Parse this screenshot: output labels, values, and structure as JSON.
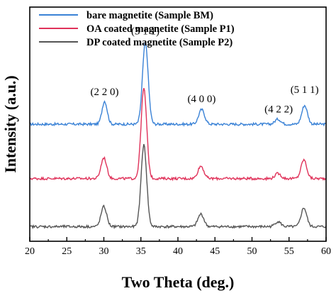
{
  "chart_data": {
    "type": "line",
    "xlabel": "Two Theta (deg.)",
    "ylabel": "Intensity (a.u.)",
    "xlim": [
      20,
      60
    ],
    "x_ticks": [
      20,
      25,
      30,
      35,
      40,
      45,
      50,
      55,
      60
    ],
    "y_ticks_shown": false,
    "grid": false,
    "legend_position": "top-left",
    "series": [
      {
        "name": "bare magnetite (Sample BM)",
        "color": "#3a82d6",
        "baseline": 2.8,
        "peaks": [
          {
            "x": 30.1,
            "height": 0.55,
            "width": 0.35
          },
          {
            "x": 35.6,
            "height": 1.95,
            "width": 0.38
          },
          {
            "x": 43.2,
            "height": 0.35,
            "width": 0.4
          },
          {
            "x": 53.5,
            "height": 0.12,
            "width": 0.4
          },
          {
            "x": 57.1,
            "height": 0.45,
            "width": 0.38
          }
        ]
      },
      {
        "name": "OA coated magnetite (Sample P1)",
        "color": "#e0325a",
        "baseline": 1.5,
        "peaks": [
          {
            "x": 30.0,
            "height": 0.5,
            "width": 0.38
          },
          {
            "x": 35.4,
            "height": 2.15,
            "width": 0.38
          },
          {
            "x": 43.1,
            "height": 0.3,
            "width": 0.4
          },
          {
            "x": 53.5,
            "height": 0.12,
            "width": 0.4
          },
          {
            "x": 57.0,
            "height": 0.45,
            "width": 0.38
          }
        ]
      },
      {
        "name": "DP coated magnetite (Sample P2)",
        "color": "#555555",
        "baseline": 0.35,
        "peaks": [
          {
            "x": 30.0,
            "height": 0.48,
            "width": 0.38
          },
          {
            "x": 35.4,
            "height": 1.95,
            "width": 0.38
          },
          {
            "x": 43.1,
            "height": 0.3,
            "width": 0.4
          },
          {
            "x": 53.5,
            "height": 0.12,
            "width": 0.4
          },
          {
            "x": 57.0,
            "height": 0.45,
            "width": 0.38
          }
        ]
      }
    ],
    "annotations": [
      {
        "text": "(2 2 0)",
        "x": 30.1,
        "y": 3.5
      },
      {
        "text": "(3 1 1)",
        "x": 35.6,
        "y": 4.95
      },
      {
        "text": "(4 0 0)",
        "x": 43.2,
        "y": 3.33
      },
      {
        "text": "(4 2 2)",
        "x": 53.6,
        "y": 3.08
      },
      {
        "text": "(5 1 1)",
        "x": 57.1,
        "y": 3.55
      }
    ],
    "ylim": [
      0,
      5.6
    ]
  }
}
